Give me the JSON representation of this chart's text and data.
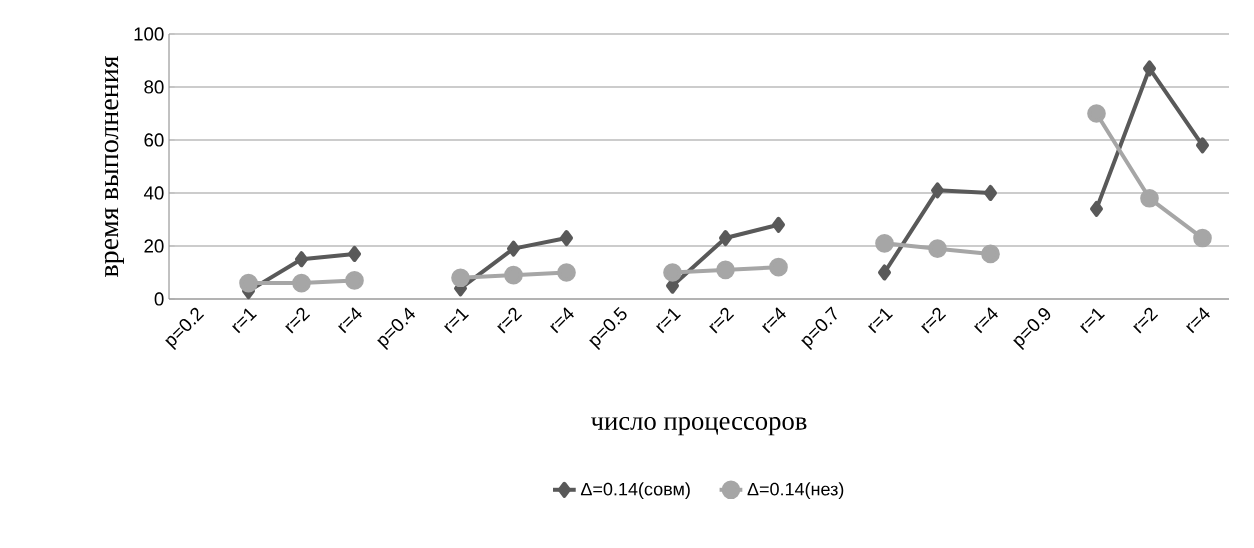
{
  "chart_data": {
    "type": "line",
    "xlabel": "число процессоров",
    "ylabel": "время выполнения",
    "categories": [
      "p=0.2",
      "r=1",
      "r=2",
      "r=4",
      "p=0.4",
      "r=1",
      "r=2",
      "r=4",
      "p=0.5",
      "r=1",
      "r=2",
      "r=4",
      "p=0.7",
      "r=1",
      "r=2",
      "r=4",
      "p=0.9",
      "r=1",
      "r=2",
      "r=4"
    ],
    "series": [
      {
        "name": "Δ=0.14(совм)",
        "color": "#595959",
        "marker": "diamond",
        "values": [
          null,
          3,
          15,
          17,
          null,
          4,
          19,
          23,
          null,
          5,
          23,
          28,
          null,
          10,
          41,
          40,
          null,
          34,
          87,
          58
        ]
      },
      {
        "name": "Δ=0.14(нез)",
        "color": "#a6a6a6",
        "marker": "circle",
        "values": [
          null,
          6,
          6,
          7,
          null,
          8,
          9,
          10,
          null,
          10,
          11,
          12,
          null,
          21,
          19,
          17,
          null,
          70,
          38,
          23
        ]
      }
    ],
    "ylim": [
      0,
      100
    ],
    "yticks": [
      0,
      20,
      40,
      60,
      80,
      100
    ],
    "grid": "y",
    "legend": "bottom"
  }
}
